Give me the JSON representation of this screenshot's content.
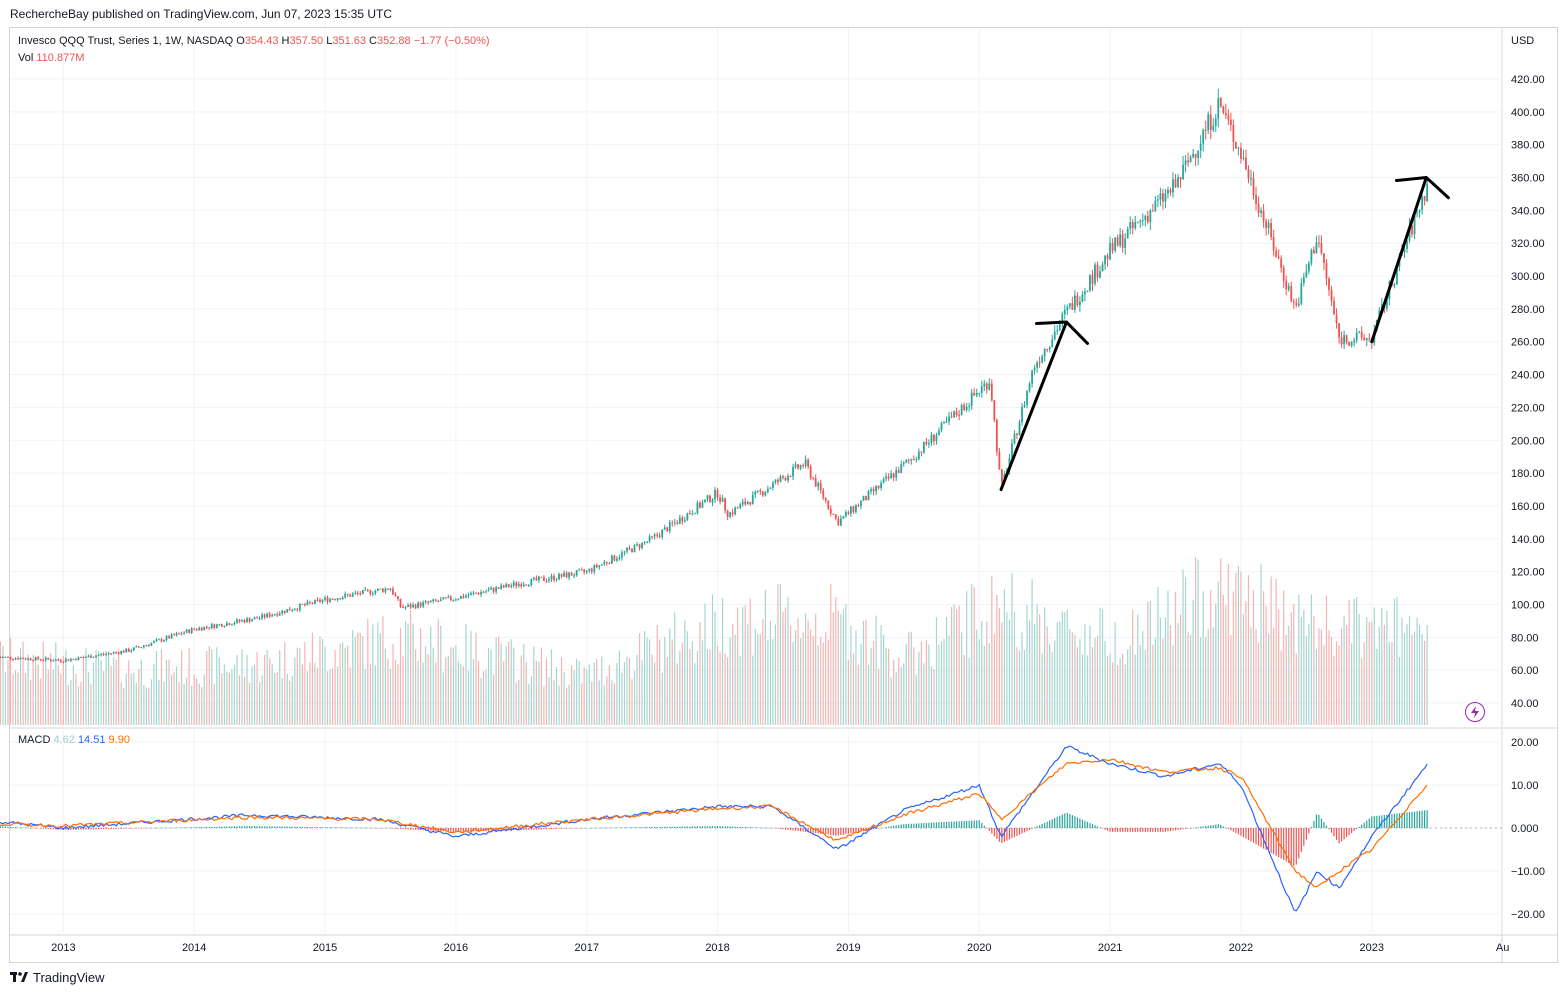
{
  "header": {
    "published_line": "RechercheBay published on TradingView.com, Jun 07, 2023 15:35 UTC"
  },
  "legend": {
    "symbol": "Invesco QQQ Trust, Series 1, 1W, NASDAQ",
    "o_label": "O",
    "o_value": "354.43",
    "h_label": "H",
    "h_value": "357.50",
    "l_label": "L",
    "l_value": "351.63",
    "c_label": "C",
    "c_value": "352.88",
    "change": "−1.77 (−0.50%)",
    "vol_label": "Vol",
    "vol_value": "110.877M",
    "macd_label": "MACD",
    "macd_hist": "4.62",
    "macd_line": "14.51",
    "macd_signal": "9.90"
  },
  "footer": {
    "brand": "TradingView"
  },
  "colors": {
    "up": "#26a69a",
    "down": "#ef5350",
    "up_vol": "#a5d6cf",
    "down_vol": "#f5b3b1",
    "macd": "#2962ff",
    "signal": "#ff6d00",
    "grid": "#f0f3fa",
    "annotation": "#000000"
  },
  "chart_data": [
    {
      "type": "candlestick",
      "pane": "price",
      "currency": "USD",
      "x": [
        "2012-07",
        "2013-01",
        "2013-07",
        "2014-01",
        "2014-07",
        "2015-01",
        "2015-07",
        "2015-08",
        "2016-01",
        "2016-07",
        "2017-01",
        "2017-07",
        "2018-01",
        "2018-02",
        "2018-09",
        "2018-12",
        "2019-07",
        "2020-02",
        "2020-03",
        "2020-06",
        "2020-09",
        "2021-01",
        "2021-07",
        "2021-11",
        "2022-01",
        "2022-06",
        "2022-08",
        "2022-10",
        "2023-01",
        "2023-06"
      ],
      "y": [
        68,
        66,
        72,
        85,
        92,
        103,
        110,
        98,
        104,
        113,
        120,
        140,
        168,
        155,
        186,
        150,
        190,
        237,
        170,
        245,
        278,
        315,
        355,
        405,
        375,
        280,
        325,
        262,
        262,
        354
      ],
      "y_ticks": [
        "420.00",
        "400.00",
        "380.00",
        "360.00",
        "340.00",
        "320.00",
        "300.00",
        "280.00",
        "260.00",
        "240.00",
        "220.00",
        "200.00",
        "180.00",
        "160.00",
        "140.00",
        "120.00",
        "100.00",
        "80.00",
        "60.00",
        "40.00"
      ],
      "y_axis_label": "USD",
      "x_ticks": [
        "2013",
        "2014",
        "2015",
        "2016",
        "2017",
        "2018",
        "2019",
        "2020",
        "2021",
        "2022",
        "2023",
        "Au"
      ],
      "annotations": [
        {
          "type": "arrow",
          "from": [
            "2020-03",
            170
          ],
          "to": [
            "2020-09",
            272
          ]
        },
        {
          "type": "arrow",
          "from": [
            "2023-01",
            260
          ],
          "to": [
            "2023-06",
            360
          ]
        }
      ]
    },
    {
      "type": "bar",
      "pane": "volume",
      "series_name": "Vol",
      "x": [
        "2012-07",
        "2013-07",
        "2014-07",
        "2015-08",
        "2016-01",
        "2017-01",
        "2018-02",
        "2018-12",
        "2019-06",
        "2020-03",
        "2020-09",
        "2021-03",
        "2021-11",
        "2022-01",
        "2022-06",
        "2022-10",
        "2023-03",
        "2023-06"
      ],
      "y": [
        60,
        50,
        55,
        80,
        70,
        45,
        95,
        95,
        60,
        110,
        85,
        80,
        125,
        115,
        95,
        85,
        90,
        72
      ]
    },
    {
      "type": "line",
      "pane": "macd",
      "y_ticks": [
        "20.00",
        "10.00",
        "0.000",
        "−10.00",
        "−20.00"
      ],
      "series": [
        {
          "name": "MACD",
          "x": [
            "2012-07",
            "2013-01",
            "2014-06",
            "2015-06",
            "2016-01",
            "2017-01",
            "2018-01",
            "2018-06",
            "2018-12",
            "2019-06",
            "2020-01",
            "2020-03",
            "2020-09",
            "2021-01",
            "2021-06",
            "2021-11",
            "2022-01",
            "2022-06",
            "2022-08",
            "2022-10",
            "2023-01",
            "2023-06"
          ],
          "y": [
            1.5,
            0,
            3,
            2,
            -2,
            2,
            5,
            5,
            -5,
            4,
            10,
            -2,
            19,
            15,
            12,
            15,
            10,
            -20,
            -10,
            -14,
            -2,
            14.5
          ]
        },
        {
          "name": "Signal",
          "x": [
            "2012-07",
            "2013-01",
            "2014-06",
            "2015-06",
            "2016-01",
            "2017-01",
            "2018-01",
            "2018-06",
            "2018-12",
            "2019-06",
            "2020-01",
            "2020-03",
            "2020-09",
            "2021-01",
            "2021-06",
            "2021-11",
            "2022-01",
            "2022-06",
            "2022-08",
            "2022-10",
            "2023-01",
            "2023-06"
          ],
          "y": [
            1,
            0.5,
            2.5,
            2,
            -1,
            2,
            4.5,
            5,
            -3,
            3,
            8,
            2,
            15,
            16,
            13,
            14,
            12,
            -10,
            -14,
            -10,
            -5,
            9.9
          ]
        },
        {
          "name": "Histogram",
          "x": [
            "2020-01",
            "2020-03",
            "2020-09",
            "2022-01",
            "2022-06",
            "2022-08",
            "2023-01",
            "2023-06"
          ],
          "y": [
            2,
            -6,
            5,
            -2,
            -8,
            4,
            3,
            4.6
          ]
        }
      ]
    }
  ]
}
